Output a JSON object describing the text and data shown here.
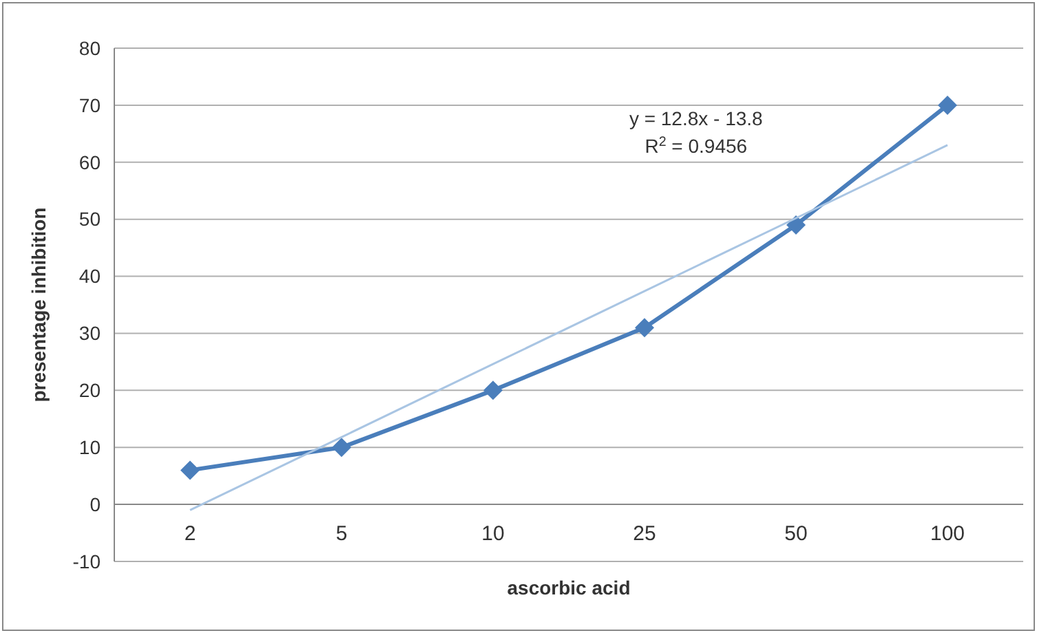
{
  "chart_data": {
    "type": "line",
    "xlabel": "ascorbic acid",
    "ylabel": "presentage inhibition",
    "categories": [
      "2",
      "5",
      "10",
      "25",
      "50",
      "100"
    ],
    "series": [
      {
        "color": "#4a7ebb",
        "marker": "diamond",
        "values": [
          6,
          10,
          20,
          31,
          49,
          70
        ]
      },
      {
        "color": "#a9c5e3",
        "marker": "none",
        "values": [
          -1,
          11.8,
          24.6,
          37.4,
          50.2,
          63
        ]
      }
    ],
    "ylim": [
      -10,
      80
    ],
    "yticks": [
      -10,
      0,
      10,
      20,
      30,
      40,
      50,
      60,
      70,
      80
    ],
    "grid": "y",
    "annotations": [
      "y = 12.8x - 13.8",
      "R$^{2}$ = 0.9456"
    ]
  }
}
